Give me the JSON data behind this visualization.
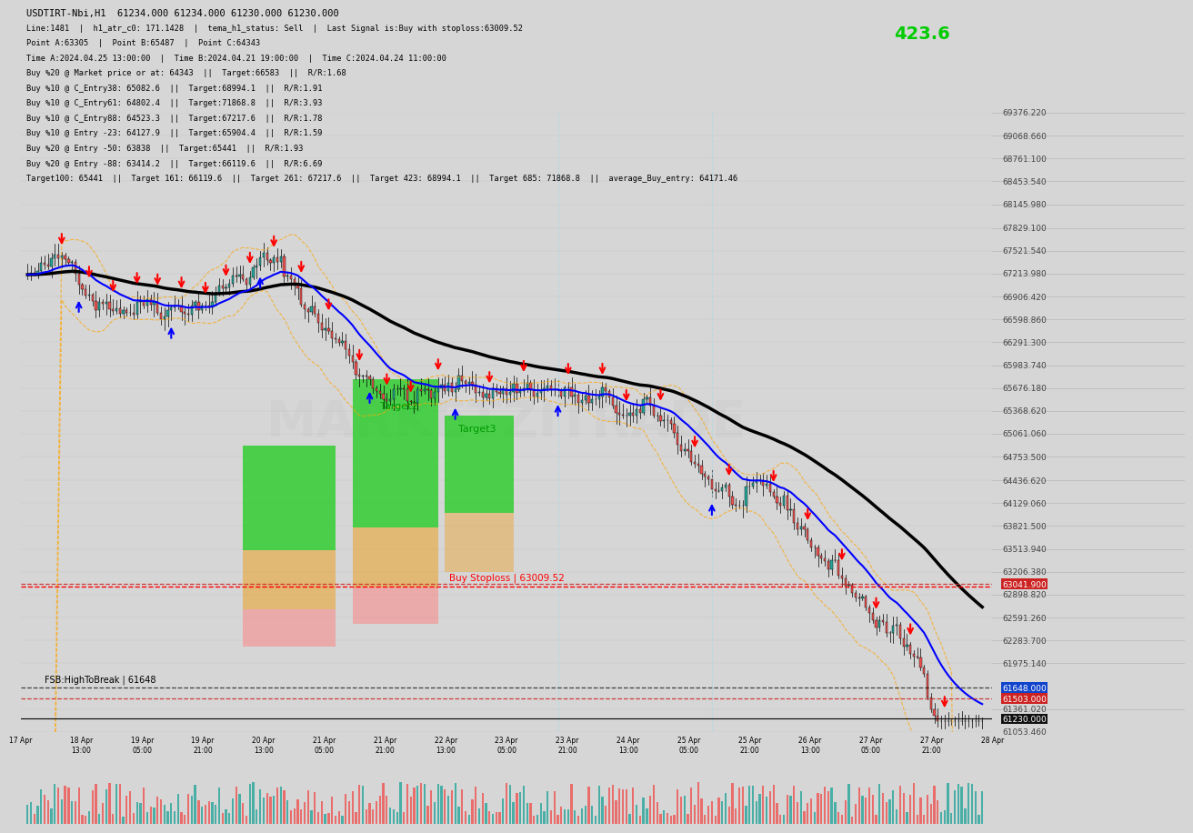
{
  "title": "USDTIRT-Nbi,H1  61234.000 61234.000 61230.000 61230.000",
  "info_lines": [
    "Line:1481  |  h1_atr_c0: 171.1428  |  tema_h1_status: Sell  |  Last Signal is:Buy with stoploss:63009.52",
    "Point A:63305  |  Point B:65487  |  Point C:64343",
    "Time A:2024.04.25 13:00:00  |  Time B:2024.04.21 19:00:00  |  Time C:2024.04.24 11:00:00",
    "Buy %20 @ Market price or at: 64343  ||  Target:66583  ||  R/R:1.68",
    "Buy %10 @ C_Entry38: 65082.6  ||  Target:68994.1  ||  R/R:1.91",
    "Buy %10 @ C_Entry61: 64802.4  ||  Target:71868.8  ||  R/R:3.93",
    "Buy %10 @ C_Entry88: 64523.3  ||  Target:67217.6  ||  R/R:1.78",
    "Buy %10 @ Entry -23: 64127.9  ||  Target:65904.4  ||  R/R:1.59",
    "Buy %20 @ Entry -50: 63838  ||  Target:65441  ||  R/R:1.93",
    "Buy %20 @ Entry -88: 63414.2  ||  Target:66119.6  ||  R/R:6.69",
    "Target100: 65441  ||  Target 161: 66119.6  ||  Target 261: 67217.6  ||  Target 423: 68994.1  ||  Target 685: 71868.8  ||  average_Buy_entry: 64171.46"
  ],
  "annotation_423": "423.6",
  "y_min": 61053.46,
  "y_max": 69376.22,
  "bg_color": "#d6d6d6",
  "chart_bg": "#d6d6d6",
  "stoploss_line": 63009.52,
  "stoploss_label": "Buy Stoploss | 63009.52",
  "hline_red1": 63041.9,
  "hline_red2": 61503.0,
  "hline_blue": 61648.0,
  "hline_black": 61230.0,
  "fsb_label": "FSB:HighToBreak | 61648",
  "label_63041": "63041.900",
  "label_61503": "61503.000",
  "label_61648": "61648.000",
  "label_61230": "61230.000",
  "right_labels": [
    [
      69376.22,
      "69376.220"
    ],
    [
      69068.66,
      "69068.660"
    ],
    [
      68761.1,
      "68761.100"
    ],
    [
      68453.54,
      "68453.540"
    ],
    [
      68145.98,
      "68145.980"
    ],
    [
      67829.1,
      "67829.100"
    ],
    [
      67521.54,
      "67521.540"
    ],
    [
      67213.98,
      "67213.980"
    ],
    [
      66906.42,
      "66906.420"
    ],
    [
      66598.86,
      "66598.860"
    ],
    [
      66291.3,
      "66291.300"
    ],
    [
      65983.74,
      "65983.740"
    ],
    [
      65676.18,
      "65676.180"
    ],
    [
      65368.62,
      "65368.620"
    ],
    [
      65061.06,
      "65061.060"
    ],
    [
      64753.5,
      "64753.500"
    ],
    [
      64436.62,
      "64436.620"
    ],
    [
      64129.06,
      "64129.060"
    ],
    [
      63821.5,
      "63821.500"
    ],
    [
      63513.94,
      "63513.940"
    ],
    [
      63206.38,
      "63206.380"
    ],
    [
      62898.82,
      "62898.820"
    ],
    [
      62591.26,
      "62591.260"
    ],
    [
      62283.7,
      "62283.700"
    ],
    [
      61975.14,
      "61975.140"
    ],
    [
      61361.02,
      "61361.020"
    ],
    [
      61053.46,
      "61053.460"
    ]
  ],
  "x_dates": [
    "17 Apr",
    "18 Apr\n13:00",
    "19 Apr\n05:00",
    "19 Apr\n21:00",
    "20 Apr\n13:00",
    "21 Apr\n05:00",
    "21 Apr\n21:00",
    "22 Apr\n13:00",
    "23 Apr\n05:00",
    "23 Apr\n21:00",
    "24 Apr\n13:00",
    "25 Apr\n05:00",
    "25 Apr\n21:00",
    "26 Apr\n13:00",
    "27 Apr\n05:00",
    "27 Apr\n21:00",
    "28 Apr"
  ],
  "box_configs": [
    [
      63,
      90,
      63500,
      64900,
      "#00cc00",
      0.65
    ],
    [
      63,
      90,
      62700,
      63500,
      "#e8a840",
      0.65
    ],
    [
      63,
      90,
      62200,
      62700,
      "#ff8080",
      0.5
    ],
    [
      95,
      120,
      63800,
      65800,
      "#00cc00",
      0.65
    ],
    [
      95,
      120,
      63000,
      63800,
      "#e8a840",
      0.65
    ],
    [
      95,
      120,
      62500,
      63000,
      "#ff8080",
      0.5
    ],
    [
      122,
      142,
      64000,
      65300,
      "#00cc00",
      0.65
    ],
    [
      122,
      142,
      63200,
      64000,
      "#e8a840",
      0.5
    ]
  ],
  "sell_locs": [
    10,
    18,
    25,
    32,
    38,
    45,
    52,
    58,
    65,
    72,
    80,
    88,
    97,
    105,
    112,
    120,
    135,
    145,
    158,
    168,
    175,
    185,
    195,
    205,
    218,
    228,
    238,
    248,
    258,
    268
  ],
  "buy_locs": [
    15,
    42,
    68,
    100,
    125,
    155,
    200
  ],
  "vlines": [
    155,
    200
  ],
  "bull_color": "#26a69a",
  "bear_color": "#ef5350"
}
